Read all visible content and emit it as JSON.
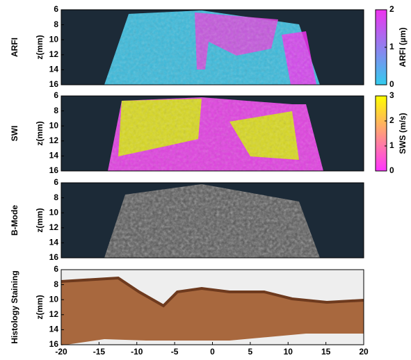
{
  "figure": {
    "panels": [
      {
        "label": "ARFI",
        "ylabel": "z(mm)",
        "ylim": [
          6,
          16
        ],
        "yticks": [
          6,
          8,
          10,
          12,
          14,
          16
        ]
      },
      {
        "label": "SWI",
        "ylabel": "z(mm)",
        "ylim": [
          6,
          16
        ],
        "yticks": [
          6,
          8,
          10,
          12,
          14,
          16
        ]
      },
      {
        "label": "B-Mode",
        "ylabel": "z(mm)",
        "ylim": [
          6,
          16
        ],
        "yticks": [
          6,
          8,
          10,
          12,
          14,
          16
        ]
      },
      {
        "label": "Histology Staining",
        "ylabel": "z(mm)",
        "ylim": [
          6,
          16
        ],
        "yticks": [
          6,
          8,
          10,
          12,
          14,
          16
        ]
      }
    ],
    "xlim": [
      -20,
      20
    ],
    "xticks": [
      -20,
      -15,
      -10,
      -5,
      0,
      5,
      10,
      15,
      20
    ],
    "colorbars": [
      {
        "label": "ARFI (µm)",
        "lim": [
          0,
          2
        ],
        "ticks": [
          0,
          1,
          2
        ],
        "colors": [
          "#33ccee",
          "#ee33ee"
        ]
      },
      {
        "label": "SWS (m/s)",
        "lim": [
          0,
          3
        ],
        "ticks": [
          0,
          1,
          2,
          3
        ],
        "colors": [
          "#ff33ff",
          "#ffff00"
        ]
      }
    ]
  }
}
